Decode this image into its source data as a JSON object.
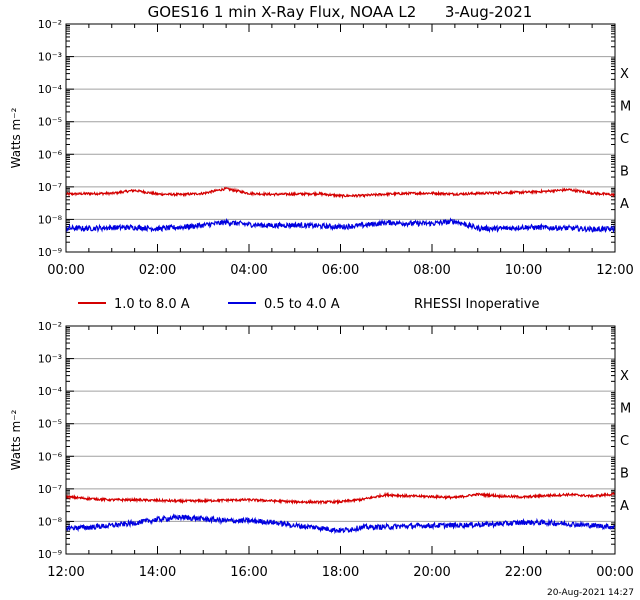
{
  "colors": {
    "long_channel": "#d40000",
    "short_channel": "#0000e0",
    "grid": "#a0a0a0",
    "frame": "#000000"
  },
  "chart_data": [
    {
      "type": "line",
      "title": "GOES16 1 min X-Ray Flux, NOAA L2      3-Aug-2021",
      "ylabel": "Watts m⁻²",
      "yscale": "log",
      "ylim": [
        1e-09,
        0.01
      ],
      "yticks": [
        {
          "label": "10⁻⁹",
          "value": 1e-09
        },
        {
          "label": "10⁻⁸",
          "value": 1e-08
        },
        {
          "label": "10⁻⁷",
          "value": 1e-07
        },
        {
          "label": "10⁻⁶",
          "value": 1e-06
        },
        {
          "label": "10⁻⁵",
          "value": 1e-05
        },
        {
          "label": "10⁻⁴",
          "value": 0.0001
        },
        {
          "label": "10⁻³",
          "value": 0.001
        },
        {
          "label": "10⁻²",
          "value": 0.01
        }
      ],
      "flare_classes": [
        {
          "label": "A",
          "value": 1e-08
        },
        {
          "label": "B",
          "value": 1e-07
        },
        {
          "label": "C",
          "value": 1e-06
        },
        {
          "label": "M",
          "value": 1e-05
        },
        {
          "label": "X",
          "value": 0.0001
        }
      ],
      "xlim": [
        "00:00",
        "12:00"
      ],
      "xticks": [
        "00:00",
        "02:00",
        "04:00",
        "06:00",
        "08:00",
        "10:00",
        "12:00"
      ],
      "grid": "horizontal at decades",
      "series": [
        {
          "name": "1.0 to 8.0 A",
          "x": [
            "00:00",
            "00:30",
            "01:00",
            "01:30",
            "02:00",
            "02:30",
            "03:00",
            "03:30",
            "04:00",
            "04:30",
            "05:00",
            "05:30",
            "06:00",
            "06:30",
            "07:00",
            "07:30",
            "08:00",
            "08:30",
            "09:00",
            "09:30",
            "10:00",
            "10:30",
            "11:00",
            "11:30",
            "12:00"
          ],
          "values": [
            6e-08,
            6.2e-08,
            6.3e-08,
            7.8e-08,
            6e-08,
            5.8e-08,
            6.3e-08,
            8.8e-08,
            6.3e-08,
            5.9e-08,
            6e-08,
            6.2e-08,
            5.3e-08,
            5.4e-08,
            6e-08,
            6.3e-08,
            6.4e-08,
            6e-08,
            6.3e-08,
            6.6e-08,
            6.8e-08,
            7.3e-08,
            8.2e-08,
            6.4e-08,
            5.7e-08
          ]
        },
        {
          "name": "0.5 to 4.0 A",
          "x": [
            "00:00",
            "00:30",
            "01:00",
            "01:30",
            "02:00",
            "02:30",
            "03:00",
            "03:30",
            "04:00",
            "04:30",
            "05:00",
            "05:30",
            "06:00",
            "06:30",
            "07:00",
            "07:30",
            "08:00",
            "08:30",
            "09:00",
            "09:30",
            "10:00",
            "10:30",
            "11:00",
            "11:30",
            "12:00"
          ],
          "values": [
            5.4e-09,
            5.3e-09,
            5.6e-09,
            5.7e-09,
            5.2e-09,
            5.8e-09,
            6.6e-09,
            8.2e-09,
            7e-09,
            6.5e-09,
            6.8e-09,
            6.3e-09,
            5.9e-09,
            6.6e-09,
            8e-09,
            7.6e-09,
            7.5e-09,
            8.8e-09,
            5.4e-09,
            5.2e-09,
            5.8e-09,
            5.6e-09,
            5.4e-09,
            5e-09,
            5.1e-09
          ]
        }
      ]
    },
    {
      "type": "line",
      "title": "",
      "ylabel": "Watts m⁻²",
      "yscale": "log",
      "ylim": [
        1e-09,
        0.01
      ],
      "yticks": [
        {
          "label": "10⁻⁹",
          "value": 1e-09
        },
        {
          "label": "10⁻⁸",
          "value": 1e-08
        },
        {
          "label": "10⁻⁷",
          "value": 1e-07
        },
        {
          "label": "10⁻⁶",
          "value": 1e-06
        },
        {
          "label": "10⁻⁵",
          "value": 1e-05
        },
        {
          "label": "10⁻⁴",
          "value": 0.0001
        },
        {
          "label": "10⁻³",
          "value": 0.001
        },
        {
          "label": "10⁻²",
          "value": 0.01
        }
      ],
      "flare_classes": [
        {
          "label": "A",
          "value": 1e-08
        },
        {
          "label": "B",
          "value": 1e-07
        },
        {
          "label": "C",
          "value": 1e-06
        },
        {
          "label": "M",
          "value": 1e-05
        },
        {
          "label": "X",
          "value": 0.0001
        }
      ],
      "xlim": [
        "12:00",
        "00:00"
      ],
      "xticks": [
        "12:00",
        "14:00",
        "16:00",
        "18:00",
        "20:00",
        "22:00",
        "00:00"
      ],
      "grid": "horizontal at decades",
      "series": [
        {
          "name": "1.0 to 8.0 A",
          "x": [
            "12:00",
            "12:30",
            "13:00",
            "13:30",
            "14:00",
            "14:30",
            "15:00",
            "15:30",
            "16:00",
            "16:30",
            "17:00",
            "17:30",
            "18:00",
            "18:30",
            "19:00",
            "19:30",
            "20:00",
            "20:30",
            "21:00",
            "21:30",
            "22:00",
            "22:30",
            "23:00",
            "23:30",
            "00:00"
          ],
          "values": [
            5.7e-08,
            5e-08,
            4.6e-08,
            4.6e-08,
            4.4e-08,
            4.2e-08,
            4.3e-08,
            4.5e-08,
            4.6e-08,
            4.3e-08,
            4e-08,
            3.9e-08,
            4e-08,
            4.8e-08,
            6.6e-08,
            6e-08,
            5.8e-08,
            5.4e-08,
            6.8e-08,
            6e-08,
            5.6e-08,
            6.2e-08,
            6.7e-08,
            6e-08,
            6.9e-08
          ]
        },
        {
          "name": "0.5 to 4.0 A",
          "x": [
            "12:00",
            "12:30",
            "13:00",
            "13:30",
            "14:00",
            "14:30",
            "15:00",
            "15:30",
            "16:00",
            "16:30",
            "17:00",
            "17:30",
            "18:00",
            "18:30",
            "19:00",
            "19:30",
            "20:00",
            "20:30",
            "21:00",
            "21:30",
            "22:00",
            "22:30",
            "23:00",
            "23:30",
            "00:00"
          ],
          "values": [
            6.3e-09,
            6.6e-09,
            7.5e-09,
            9e-09,
            1.15e-08,
            1.35e-08,
            1.2e-08,
            1.05e-08,
            1.05e-08,
            9.5e-09,
            7.5e-09,
            6.5e-09,
            5.2e-09,
            6.6e-09,
            6.8e-09,
            7.2e-09,
            7.5e-09,
            7.6e-09,
            8e-09,
            8.4e-09,
            9.4e-09,
            9.2e-09,
            8.4e-09,
            7.5e-09,
            6.8e-09
          ]
        }
      ]
    }
  ],
  "legend": {
    "items": [
      {
        "label": "1.0 to 8.0 A",
        "color": "#d40000"
      },
      {
        "label": "0.5 to 4.0 A",
        "color": "#0000e0"
      }
    ],
    "note": "RHESSI Inoperative"
  },
  "footer": {
    "timestamp": "20-Aug-2021 14:27"
  }
}
